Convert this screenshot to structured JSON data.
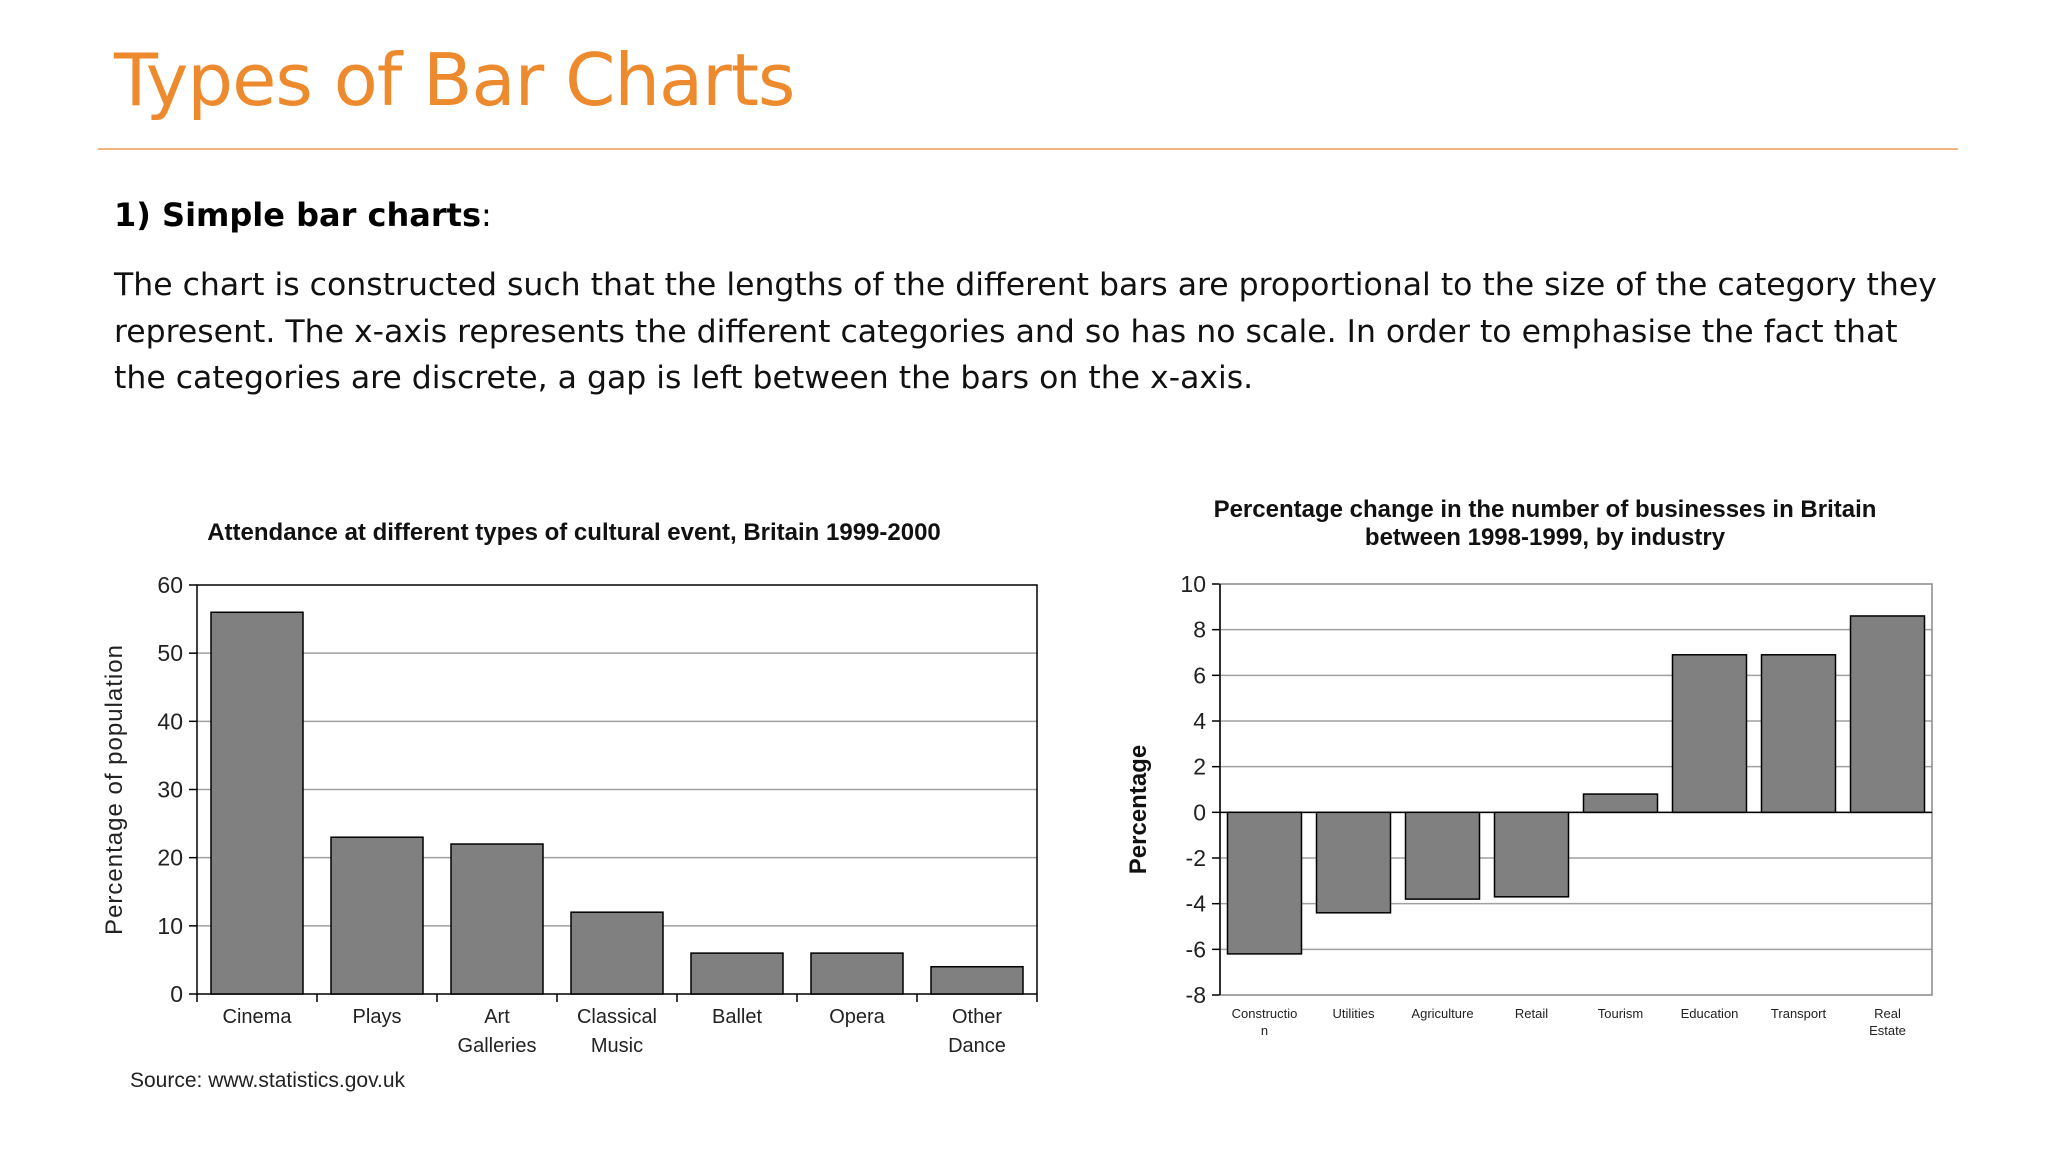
{
  "slide": {
    "title": "Types of Bar Charts",
    "heading_bold": "1) Simple bar charts",
    "heading_rest": ":",
    "body": "The chart is constructed such that the lengths of the different bars are proportional to the size of the category they represent. The x-axis represents the different categories and so has no scale. In order to emphasise the fact that the categories are discrete, a gap is left between the bars on the x-axis."
  },
  "colors": {
    "title": "#ee8a2e",
    "rule": "#f0b47c",
    "bar_fill": "#808080",
    "bar_stroke": "#000000",
    "grid": "#a0a0a0"
  },
  "chart_data": [
    {
      "type": "bar",
      "title": "Attendance at different types of cultural event, Britain 1999-2000",
      "xlabel": "",
      "ylabel": "Percentage of population",
      "categories": [
        [
          "Cinema"
        ],
        [
          "Plays"
        ],
        [
          "Art",
          "Galleries"
        ],
        [
          "Classical",
          "Music"
        ],
        [
          "Ballet"
        ],
        [
          "Opera"
        ],
        [
          "Other",
          "Dance"
        ]
      ],
      "values": [
        56,
        23,
        22,
        12,
        6,
        6,
        4
      ],
      "ylim": [
        0,
        60
      ],
      "yticks": [
        0,
        10,
        20,
        30,
        40,
        50,
        60
      ],
      "grid": true,
      "source": "Source: www.statistics.gov.uk"
    },
    {
      "type": "bar",
      "title": [
        "Percentage change in the number of businesses in Britain",
        "between 1998-1999, by industry"
      ],
      "xlabel": "",
      "ylabel": "Percentage",
      "categories": [
        [
          "Constructio",
          "n"
        ],
        [
          "Utilities"
        ],
        [
          "Agriculture"
        ],
        [
          "Retail"
        ],
        [
          "Tourism"
        ],
        [
          "Education"
        ],
        [
          "Transport"
        ],
        [
          "Real",
          "Estate"
        ]
      ],
      "values": [
        -6.2,
        -4.4,
        -3.8,
        -3.7,
        0.8,
        6.9,
        6.9,
        8.6
      ],
      "ylim": [
        -8,
        10
      ],
      "yticks": [
        -8,
        -6,
        -4,
        -2,
        0,
        2,
        4,
        6,
        8,
        10
      ],
      "grid": true
    }
  ]
}
